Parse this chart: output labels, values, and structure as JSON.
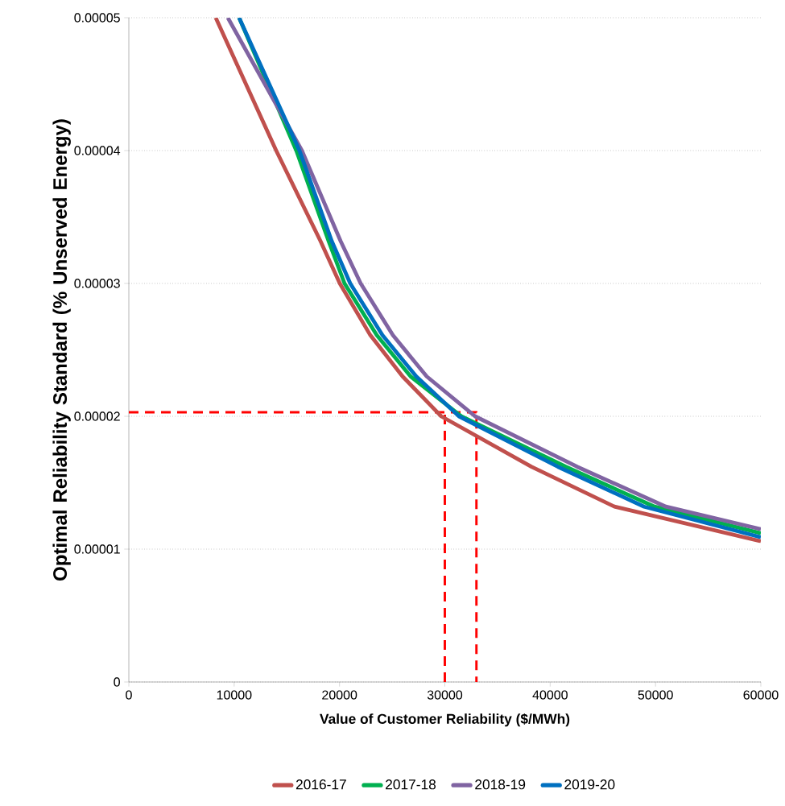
{
  "chart_data": {
    "type": "line",
    "xlabel": "Value of Customer Reliability ($/MWh)",
    "ylabel": "Optimal Reliability Standard (% Unserved Energy)",
    "xlim": [
      0,
      60000
    ],
    "ylim": [
      0,
      5e-05
    ],
    "xticks": [
      0,
      10000,
      20000,
      30000,
      40000,
      50000,
      60000
    ],
    "yticks": [
      {
        "value": 0,
        "label": "0"
      },
      {
        "value": 1e-05,
        "label": "0.00001"
      },
      {
        "value": 2e-05,
        "label": "0.00002"
      },
      {
        "value": 3e-05,
        "label": "0.00003"
      },
      {
        "value": 4e-05,
        "label": "0.00004"
      },
      {
        "value": 5e-05,
        "label": "0.00005"
      }
    ],
    "grid": "y",
    "legend": "bottom",
    "line_style": "solid",
    "series": [
      {
        "name": "2016-17",
        "color": "#c0504d",
        "x": [
          8250,
          13990,
          18190,
          20030,
          22930,
          25990,
          29660,
          38220,
          46100,
          60000
        ],
        "values": [
          5e-05,
          4e-05,
          3.32e-05,
          3e-05,
          2.61e-05,
          2.3e-05,
          2e-05,
          1.62e-05,
          1.32e-05,
          1.06e-05
        ]
      },
      {
        "name": "2017-18",
        "color": "#00b050",
        "x": [
          10470,
          15900,
          18960,
          20480,
          23540,
          26750,
          31560,
          41500,
          49910,
          60000
        ],
        "values": [
          5e-05,
          4e-05,
          3.32e-05,
          3e-05,
          2.61e-05,
          2.3e-05,
          2e-05,
          1.62e-05,
          1.32e-05,
          1.12e-05
        ]
      },
      {
        "name": "2018-19",
        "color": "#8064a2",
        "x": [
          9400,
          16430,
          20100,
          22010,
          25070,
          28280,
          32870,
          42570,
          50980,
          60000
        ],
        "values": [
          5e-05,
          4e-05,
          3.32e-05,
          3e-05,
          2.61e-05,
          2.3e-05,
          2e-05,
          1.62e-05,
          1.32e-05,
          1.15e-05
        ]
      },
      {
        "name": "2019-20",
        "color": "#0070c0",
        "x": [
          10470,
          16200,
          19260,
          21020,
          24080,
          27290,
          31340,
          40740,
          48920,
          60000
        ],
        "values": [
          5e-05,
          4e-05,
          3.32e-05,
          3e-05,
          2.61e-05,
          2.3e-05,
          2e-05,
          1.62e-05,
          1.32e-05,
          1.09e-05
        ]
      },
      {
        "color": "#ff0000",
        "line_style": "dashed",
        "x": [
          0,
          33000,
          33000
        ],
        "values": [
          2.03e-05,
          2.03e-05,
          0
        ]
      },
      {
        "color": "#ff0000",
        "line_style": "dashed",
        "x": [
          30000,
          30000
        ],
        "values": [
          0,
          2.03e-05
        ]
      }
    ]
  }
}
